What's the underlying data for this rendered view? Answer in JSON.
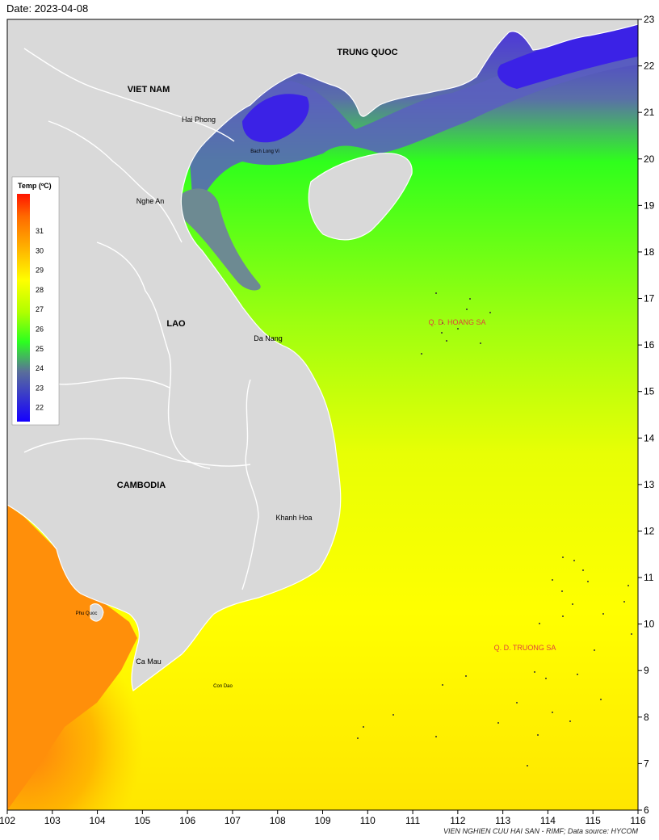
{
  "date_label": "Date: 2023-04-08",
  "footer": "VIEN NGHIEN CUU HAI SAN - RIMF; Data source: HYCOM",
  "colors": {
    "land": "#d9d9d9",
    "border": "#ffffff",
    "cold": "#3a20e0",
    "mid": "#2bff1f",
    "warm_yellow": "#ffff00",
    "hot_orange": "#ff8c0a"
  },
  "legend": {
    "title": "Temp (ºC)",
    "ticks": [
      "31",
      "30",
      "29",
      "28",
      "27",
      "26",
      "25",
      "24",
      "23",
      "22"
    ]
  },
  "axes": {
    "x_ticks": [
      "102",
      "103",
      "104",
      "105",
      "106",
      "107",
      "108",
      "109",
      "110",
      "111",
      "112",
      "113",
      "114",
      "115",
      "116"
    ],
    "y_ticks": [
      "23",
      "22",
      "21",
      "20",
      "19",
      "18",
      "17",
      "16",
      "15",
      "14",
      "13",
      "12",
      "11",
      "10",
      "9",
      "8",
      "7",
      "6"
    ]
  },
  "labels": {
    "trung_quoc": "TRUNG QUOC",
    "viet_nam": "VIET NAM",
    "lao": "LAO",
    "cambodia": "CAMBODIA",
    "hai_phong": "Hai Phong",
    "bach_long_vi": "Bach Long Vi",
    "nghe_an": "Nghe An",
    "da_nang": "Da Nang",
    "khanh_hoa": "Khanh Hoa",
    "phu_quoc": "Phu Quoc",
    "ca_mau": "Ca Mau",
    "con_dao": "Con Dao",
    "hoang_sa": "Q. D. HOANG SA",
    "truong_sa": "Q. D. TRUONG SA"
  }
}
